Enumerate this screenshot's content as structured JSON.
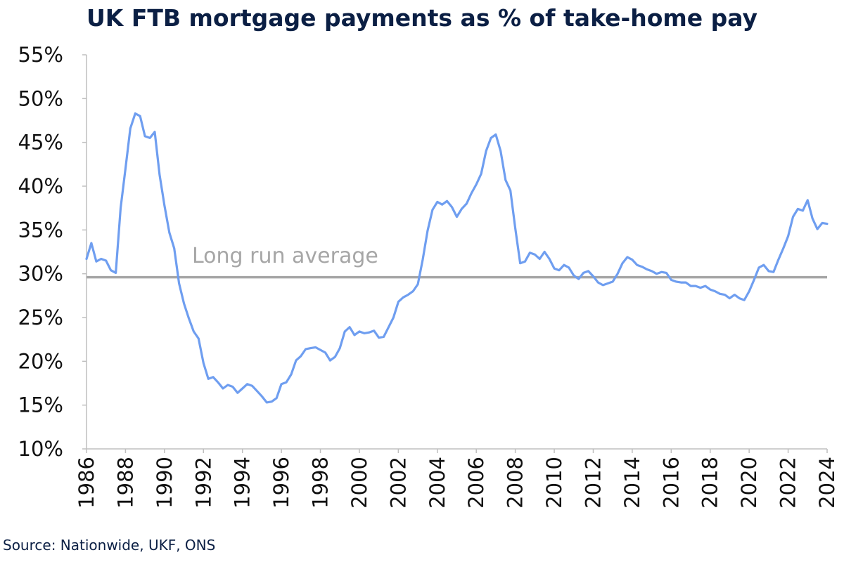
{
  "chart_data": {
    "type": "line",
    "title": "UK FTB mortgage payments as % of take-home pay",
    "source": "Source: Nationwide, UKF, ONS",
    "ylim": [
      10,
      55
    ],
    "xlim": [
      1986,
      2024
    ],
    "y_ticks": [
      10,
      15,
      20,
      25,
      30,
      35,
      40,
      45,
      50,
      55
    ],
    "y_tick_labels": [
      "10%",
      "15%",
      "20%",
      "25%",
      "30%",
      "35%",
      "40%",
      "45%",
      "50%",
      "55%"
    ],
    "x_tick_labels": [
      "1986",
      "1988",
      "1990",
      "1992",
      "1994",
      "1996",
      "1998",
      "2000",
      "2002",
      "2004",
      "2006",
      "2008",
      "2010",
      "2012",
      "2014",
      "2016",
      "2018",
      "2020",
      "2022",
      "2024"
    ],
    "grid": false,
    "legend": "none",
    "colors": {
      "series": "#6f9ef0",
      "reference": "#a6a6a6",
      "title": "#0b1f44"
    },
    "reference_line": {
      "label": "Long run average",
      "value": 29.6
    },
    "series": [
      {
        "x": [
          1986.0,
          1986.25,
          1986.5,
          1986.75,
          1987.0,
          1987.25,
          1987.5,
          1987.75,
          1988.0,
          1988.25,
          1988.5,
          1988.75,
          1989.0,
          1989.25,
          1989.5,
          1989.75,
          1990.0,
          1990.25,
          1990.5,
          1990.75,
          1991.0,
          1991.25,
          1991.5,
          1991.75,
          1992.0,
          1992.25,
          1992.5,
          1992.75,
          1993.0,
          1993.25,
          1993.5,
          1993.75,
          1994.0,
          1994.25,
          1994.5,
          1994.75,
          1995.0,
          1995.25,
          1995.5,
          1995.75,
          1996.0,
          1996.25,
          1996.5,
          1996.75,
          1997.0,
          1997.25,
          1997.5,
          1997.75,
          1998.0,
          1998.25,
          1998.5,
          1998.75,
          1999.0,
          1999.25,
          1999.5,
          1999.75,
          2000.0,
          2000.25,
          2000.5,
          2000.75,
          2001.0,
          2001.25,
          2001.5,
          2001.75,
          2002.0,
          2002.25,
          2002.5,
          2002.75,
          2003.0,
          2003.25,
          2003.5,
          2003.75,
          2004.0,
          2004.25,
          2004.5,
          2004.75,
          2005.0,
          2005.25,
          2005.5,
          2005.75,
          2006.0,
          2006.25,
          2006.5,
          2006.75,
          2007.0,
          2007.25,
          2007.5,
          2007.75,
          2008.0,
          2008.25,
          2008.5,
          2008.75,
          2009.0,
          2009.25,
          2009.5,
          2009.75,
          2010.0,
          2010.25,
          2010.5,
          2010.75,
          2011.0,
          2011.25,
          2011.5,
          2011.75,
          2012.0,
          2012.25,
          2012.5,
          2012.75,
          2013.0,
          2013.25,
          2013.5,
          2013.75,
          2014.0,
          2014.25,
          2014.5,
          2014.75,
          2015.0,
          2015.25,
          2015.5,
          2015.75,
          2016.0,
          2016.25,
          2016.5,
          2016.75,
          2017.0,
          2017.25,
          2017.5,
          2017.75,
          2018.0,
          2018.25,
          2018.5,
          2018.75,
          2019.0,
          2019.25,
          2019.5,
          2019.75,
          2020.0,
          2020.25,
          2020.5,
          2020.75,
          2021.0,
          2021.25,
          2021.5,
          2021.75,
          2022.0,
          2022.25,
          2022.5,
          2022.75,
          2023.0,
          2023.25,
          2023.5,
          2023.75,
          2024.0
        ],
        "values": [
          31.7,
          33.5,
          31.4,
          31.7,
          31.5,
          30.4,
          30.1,
          37.5,
          42.0,
          46.6,
          48.3,
          48.0,
          45.7,
          45.5,
          46.2,
          41.3,
          37.8,
          34.7,
          32.9,
          28.9,
          26.6,
          24.9,
          23.4,
          22.6,
          19.8,
          18.0,
          18.2,
          17.6,
          16.9,
          17.3,
          17.1,
          16.4,
          16.9,
          17.4,
          17.2,
          16.6,
          16.0,
          15.3,
          15.4,
          15.8,
          17.4,
          17.6,
          18.5,
          20.1,
          20.6,
          21.4,
          21.5,
          21.6,
          21.3,
          21.0,
          20.1,
          20.5,
          21.5,
          23.4,
          23.9,
          23.0,
          23.4,
          23.2,
          23.3,
          23.5,
          22.7,
          22.8,
          23.9,
          25.0,
          26.8,
          27.3,
          27.6,
          28.0,
          28.8,
          31.6,
          34.9,
          37.3,
          38.2,
          37.9,
          38.3,
          37.6,
          36.5,
          37.4,
          38.0,
          39.2,
          40.2,
          41.4,
          44.0,
          45.5,
          45.9,
          44.0,
          40.7,
          39.5,
          35.2,
          31.2,
          31.4,
          32.4,
          32.2,
          31.7,
          32.5,
          31.7,
          30.6,
          30.4,
          31.0,
          30.7,
          29.8,
          29.4,
          30.1,
          30.3,
          29.7,
          29.0,
          28.7,
          28.9,
          29.1,
          30.0,
          31.2,
          31.9,
          31.6,
          31.0,
          30.8,
          30.5,
          30.3,
          30.0,
          30.2,
          30.1,
          29.3,
          29.1,
          29.0,
          29.0,
          28.6,
          28.6,
          28.4,
          28.6,
          28.2,
          28.0,
          27.7,
          27.6,
          27.2,
          27.6,
          27.2,
          27.0,
          28.0,
          29.3,
          30.7,
          31.0,
          30.3,
          30.2,
          31.6,
          32.9,
          34.3,
          36.5,
          37.4,
          37.2,
          38.4,
          36.3,
          35.1,
          35.8,
          35.7
        ]
      }
    ]
  }
}
